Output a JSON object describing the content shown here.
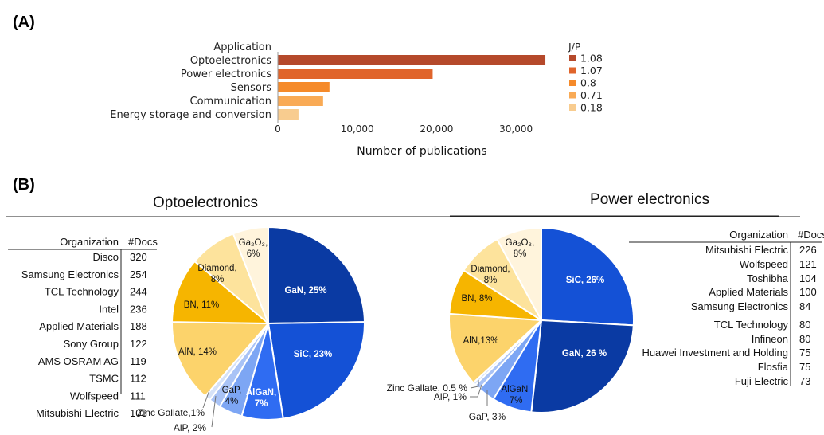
{
  "panels": {
    "a_label": "(A)",
    "b_label": "(B)"
  },
  "chart_data": [
    {
      "type": "bar",
      "orientation": "horizontal",
      "category_header": "Application",
      "categories": [
        "Optoelectronics",
        "Power electronics",
        "Sensors",
        "Communication",
        "Energy storage and conversion"
      ],
      "values": [
        33700,
        19500,
        6500,
        5700,
        2600
      ],
      "colors": [
        "#b5492b",
        "#e0642b",
        "#f58a2a",
        "#f9aa55",
        "#f8cc8f"
      ],
      "xlabel": "Number of publications",
      "xlim": [
        0,
        35000
      ],
      "xticks": [
        0,
        10000,
        20000,
        30000
      ],
      "xtick_labels": [
        "0",
        "10,000",
        "20,000",
        "30,000"
      ],
      "legend": {
        "title": "J/P",
        "placement": "right",
        "entries": [
          {
            "label": "1.08",
            "color": "#b5492b"
          },
          {
            "label": "1.07",
            "color": "#e0642b"
          },
          {
            "label": "0.8",
            "color": "#f58a2a"
          },
          {
            "label": "0.71",
            "color": "#f9aa55"
          },
          {
            "label": "0.18",
            "color": "#f8cc8f"
          }
        ]
      }
    },
    {
      "type": "pie",
      "title": "Optoelectronics",
      "slices": [
        {
          "label": "GaN, 25%",
          "value": 25,
          "color": "#0a3aa3",
          "text_color": "#ffffff",
          "bold": true,
          "internal": true
        },
        {
          "label": "SiC, 23%",
          "value": 23,
          "color": "#1451d6",
          "text_color": "#ffffff",
          "bold": true,
          "internal": true
        },
        {
          "label": "AlGaN, 7%",
          "value": 7,
          "color": "#2f6cf2",
          "text_color": "#ffffff",
          "bold": true,
          "internal": true
        },
        {
          "label": "GaP, 4%",
          "value": 4,
          "color": "#7da6f4",
          "text_color": "#111111",
          "bold": false,
          "internal": true
        },
        {
          "label": "AlP, 2%",
          "value": 2,
          "color": "#a9c3f6",
          "text_color": "#111111",
          "bold": false,
          "internal": false
        },
        {
          "label": "Zinc Gallate,1%",
          "value": 1,
          "color": "#d6e2f8",
          "text_color": "#111111",
          "bold": false,
          "internal": false
        },
        {
          "label": "AlN, 14%",
          "value": 14,
          "color": "#fcd36b",
          "text_color": "#111111",
          "bold": false,
          "internal": true
        },
        {
          "label": "BN, 11%",
          "value": 11,
          "color": "#f6b500",
          "text_color": "#111111",
          "bold": false,
          "internal": true
        },
        {
          "label": "Diamond, 8%",
          "value": 8,
          "color": "#fde39c",
          "text_color": "#111111",
          "bold": false,
          "internal": true
        },
        {
          "label": "Ga₂O₃, 6%",
          "value": 6,
          "color": "#fff4dc",
          "text_color": "#111111",
          "bold": false,
          "internal": true
        }
      ]
    },
    {
      "type": "pie",
      "title": "Power electronics",
      "slices": [
        {
          "label": "SiC, 26%",
          "value": 26,
          "color": "#1451d6",
          "text_color": "#ffffff",
          "bold": true,
          "internal": true
        },
        {
          "label": "GaN, 26 %",
          "value": 26,
          "color": "#0a3aa3",
          "text_color": "#ffffff",
          "bold": true,
          "internal": true
        },
        {
          "label": "AlGaN 7%",
          "value": 7,
          "color": "#2f6cf2",
          "text_color": "#111111",
          "bold": false,
          "internal": true
        },
        {
          "label": "GaP, 3%",
          "value": 3,
          "color": "#7da6f4",
          "text_color": "#111111",
          "bold": false,
          "internal": false
        },
        {
          "label": "AlP, 1%",
          "value": 1,
          "color": "#a9c3f6",
          "text_color": "#111111",
          "bold": false,
          "internal": false
        },
        {
          "label": "Zinc Gallate, 0.5 %",
          "value": 0.5,
          "color": "#d6e2f8",
          "text_color": "#111111",
          "bold": false,
          "internal": false
        },
        {
          "label": "AlN,13%",
          "value": 13,
          "color": "#fcd36b",
          "text_color": "#111111",
          "bold": false,
          "internal": true
        },
        {
          "label": "BN, 8%",
          "value": 8,
          "color": "#f6b500",
          "text_color": "#111111",
          "bold": false,
          "internal": true
        },
        {
          "label": "Diamond, 8%",
          "value": 8,
          "color": "#fde39c",
          "text_color": "#111111",
          "bold": false,
          "internal": true
        },
        {
          "label": "Ga₂O₃, 8%",
          "value": 8,
          "color": "#fff4dc",
          "text_color": "#111111",
          "bold": false,
          "internal": true
        }
      ]
    },
    {
      "type": "table",
      "for": "Optoelectronics",
      "columns": [
        "Organization",
        "#Docs"
      ],
      "rows": [
        [
          "Disco",
          "320"
        ],
        [
          "Samsung Electronics",
          "254"
        ],
        [
          "TCL Technology",
          "244"
        ],
        [
          "Intel",
          "236"
        ],
        [
          "Applied Materials",
          "188"
        ],
        [
          "Sony Group",
          "122"
        ],
        [
          "AMS OSRAM AG",
          "119"
        ],
        [
          "TSMC",
          "112"
        ],
        [
          "Wolfspeed",
          "111"
        ],
        [
          "Mitsubishi Electric",
          "103"
        ]
      ]
    },
    {
      "type": "table",
      "for": "Power electronics",
      "columns": [
        "Organization",
        "#Docs"
      ],
      "rows": [
        [
          "Mitsubishi Electric",
          "226"
        ],
        [
          "Wolfspeed",
          "121"
        ],
        [
          "Toshibha",
          "104"
        ],
        [
          "Applied Materials",
          "100"
        ],
        [
          "Samsung Electronics",
          "84"
        ],
        [
          "TCL Technology",
          "80"
        ],
        [
          "Infineon",
          "80"
        ],
        [
          "Huawei Investment and Holding",
          "75"
        ],
        [
          "Flosfia",
          "75"
        ],
        [
          "Fuji Electric",
          "73"
        ]
      ]
    }
  ]
}
